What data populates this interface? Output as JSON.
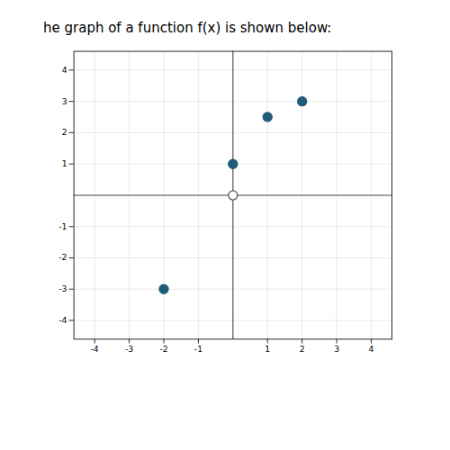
{
  "chart_data": {
    "type": "scatter",
    "title": "he graph of a function f(x) is shown below:",
    "series": [
      {
        "x": [
          -2,
          0,
          1,
          2
        ],
        "values": [
          -3,
          1,
          2.5,
          3
        ],
        "color": "#1f5c7a",
        "marker": "filled"
      },
      {
        "x": [
          0
        ],
        "values": [
          0
        ],
        "color": "#555555",
        "marker": "open"
      }
    ],
    "xlim": [
      -4.6,
      4.6
    ],
    "ylim": [
      -4.6,
      4.6
    ],
    "xticks": [
      -4,
      -3,
      -2,
      -1,
      1,
      2,
      3,
      4
    ],
    "yticks": [
      -4,
      -3,
      -2,
      -1,
      1,
      2,
      3,
      4
    ],
    "grid": true
  }
}
